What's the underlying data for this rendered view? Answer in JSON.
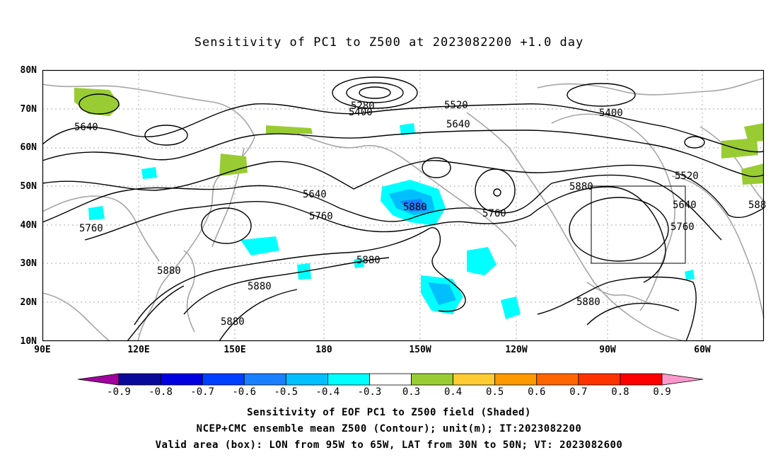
{
  "title": "Sensitivity of PC1 to Z500 at 2023082200 +1.0 day",
  "lat_labels": [
    "80N",
    "70N",
    "60N",
    "50N",
    "40N",
    "30N",
    "20N",
    "10N"
  ],
  "lon_labels": [
    "90E",
    "120E",
    "150E",
    "180",
    "150W",
    "120W",
    "90W",
    "60W"
  ],
  "contour_labels": [
    "5280",
    "5400",
    "5520",
    "5640",
    "5400",
    "5640",
    "5520",
    "5640",
    "5760",
    "5640",
    "5760",
    "5880",
    "5760",
    "5880",
    "5760",
    "5640",
    "588",
    "5880",
    "5880",
    "5880",
    "5880",
    "5880"
  ],
  "colorbar": {
    "ticks": [
      "-0.9",
      "-0.8",
      "-0.7",
      "-0.6",
      "-0.5",
      "-0.4",
      "-0.3",
      "0.3",
      "0.4",
      "0.5",
      "0.6",
      "0.7",
      "0.8",
      "0.9"
    ],
    "colors": [
      "#a000a0",
      "#0a0a9a",
      "#0000e0",
      "#0040ff",
      "#1a80ff",
      "#00bfff",
      "#00ffff",
      "#ffffff",
      "#99cc33",
      "#ffcc33",
      "#ff9900",
      "#ff6600",
      "#ff3300",
      "#ff0000",
      "#ff99cc"
    ]
  },
  "footer": {
    "line1": "Sensitivity of EOF PC1 to Z500 field (Shaded)",
    "line2": "NCEP+CMC ensemble mean Z500 (Contour); unit(m); IT:2023082200",
    "line3": "Valid area (box): LON from 95W to 65W, LAT from 30N to 50N; VT: 2023082600"
  }
}
